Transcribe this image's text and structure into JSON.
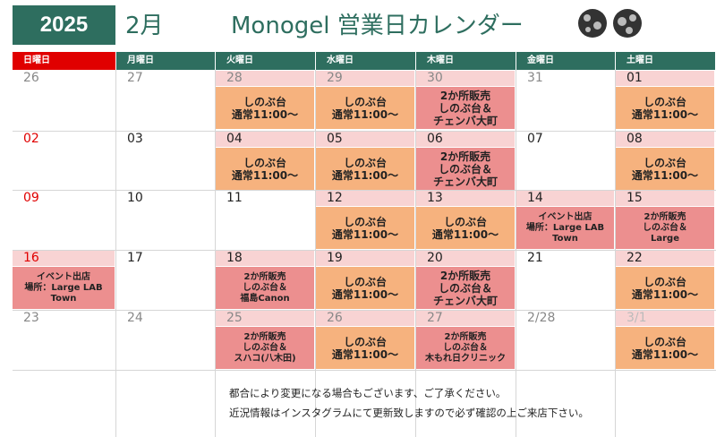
{
  "header": {
    "year": "2025",
    "month": "2月",
    "title": "Monogel 営業日カレンダー",
    "logos": [
      "logo-icon",
      "logo-icon"
    ]
  },
  "weekdays": [
    {
      "label": "日曜日",
      "color": "#e00000"
    },
    {
      "label": "月曜日",
      "color": "#2e6e5f"
    },
    {
      "label": "火曜日",
      "color": "#2e6e5f"
    },
    {
      "label": "水曜日",
      "color": "#2e6e5f"
    },
    {
      "label": "木曜日",
      "color": "#2e6e5f"
    },
    {
      "label": "金曜日",
      "color": "#2e6e5f"
    },
    {
      "label": "土曜日",
      "color": "#2e6e5f"
    }
  ],
  "colors": {
    "orange": "#f6b27e",
    "pink": "#ec8f8f",
    "date_pink_bg": "#f8d3d3",
    "red_date": "#e00000",
    "gray_date": "#888888",
    "black_date": "#222222"
  },
  "weeks": [
    [
      {
        "date": "26",
        "tone": "gray"
      },
      {
        "date": "27",
        "tone": "gray"
      },
      {
        "date": "28",
        "tone": "gray",
        "bg": "pink",
        "event": "しのぶ台\n通常11:00～",
        "color": "orange"
      },
      {
        "date": "29",
        "tone": "gray",
        "bg": "pink",
        "event": "しのぶ台\n通常11:00～",
        "color": "orange"
      },
      {
        "date": "30",
        "tone": "gray",
        "bg": "pink",
        "event": "2か所販売\nしのぶ台＆\nチェンバ大町",
        "color": "pink"
      },
      {
        "date": "31",
        "tone": "gray"
      },
      {
        "date": "01",
        "tone": "black",
        "bg": "pink",
        "event": "しのぶ台\n通常11:00～",
        "color": "orange"
      }
    ],
    [
      {
        "date": "02",
        "tone": "red"
      },
      {
        "date": "03",
        "tone": "black"
      },
      {
        "date": "04",
        "tone": "black",
        "bg": "pink",
        "event": "しのぶ台\n通常11:00～",
        "color": "orange"
      },
      {
        "date": "05",
        "tone": "black",
        "bg": "pink",
        "event": "しのぶ台\n通常11:00～",
        "color": "orange"
      },
      {
        "date": "06",
        "tone": "black",
        "bg": "pink",
        "event": "2か所販売\nしのぶ台＆\nチェンバ大町",
        "color": "pink"
      },
      {
        "date": "07",
        "tone": "black"
      },
      {
        "date": "08",
        "tone": "black",
        "bg": "pink",
        "event": "しのぶ台\n通常11:00～",
        "color": "orange"
      }
    ],
    [
      {
        "date": "09",
        "tone": "red"
      },
      {
        "date": "10",
        "tone": "black"
      },
      {
        "date": "11",
        "tone": "black"
      },
      {
        "date": "12",
        "tone": "black",
        "bg": "pink",
        "event": "しのぶ台\n通常11:00～",
        "color": "orange"
      },
      {
        "date": "13",
        "tone": "black",
        "bg": "pink",
        "event": "しのぶ台\n通常11:00～",
        "color": "orange"
      },
      {
        "date": "14",
        "tone": "black",
        "bg": "pink",
        "event": "イベント出店\n場所：Large LAB\nTown",
        "color": "pink",
        "small": true
      },
      {
        "date": "15",
        "tone": "black",
        "bg": "pink",
        "event": "2か所販売\nしのぶ台＆\nLarge",
        "color": "pink",
        "small": true
      }
    ],
    [
      {
        "date": "16",
        "tone": "red",
        "bg": "pink",
        "event": "イベント出店\n場所：Large LAB\nTown",
        "color": "pink",
        "small": true
      },
      {
        "date": "17",
        "tone": "black"
      },
      {
        "date": "18",
        "tone": "black",
        "bg": "pink",
        "event": "2か所販売\nしのぶ台＆\n福島Canon",
        "color": "pink",
        "small": true
      },
      {
        "date": "19",
        "tone": "black",
        "bg": "pink",
        "event": "しのぶ台\n通常11:00～",
        "color": "orange"
      },
      {
        "date": "20",
        "tone": "black",
        "bg": "pink",
        "event": "2か所販売\nしのぶ台＆\nチェンバ大町",
        "color": "pink"
      },
      {
        "date": "21",
        "tone": "black"
      },
      {
        "date": "22",
        "tone": "black",
        "bg": "pink",
        "event": "しのぶ台\n通常11:00～",
        "color": "orange"
      }
    ],
    [
      {
        "date": "23",
        "tone": "gray"
      },
      {
        "date": "24",
        "tone": "gray"
      },
      {
        "date": "25",
        "tone": "gray",
        "bg": "pink",
        "event": "2か所販売\nしのぶ台＆\nスハコ(八木田)",
        "color": "pink",
        "small": true
      },
      {
        "date": "26",
        "tone": "gray",
        "bg": "pink",
        "event": "しのぶ台\n通常11:00～",
        "color": "orange"
      },
      {
        "date": "27",
        "tone": "gray",
        "bg": "pink",
        "event": "2か所販売\nしのぶ台＆\n木もれ日クリニック",
        "color": "pink",
        "small": true
      },
      {
        "date": "2/28",
        "tone": "gray"
      },
      {
        "date": "3/1",
        "tone": "lightgray",
        "bg": "pink",
        "event": "しのぶ台\n通常11:00～",
        "color": "orange"
      }
    ]
  ],
  "notes": [
    "都合により変更になる場合もございます、ご了承ください。",
    "近況情報はインスタグラムにて更新致しますので必ず確認の上ご来店下さい。"
  ]
}
